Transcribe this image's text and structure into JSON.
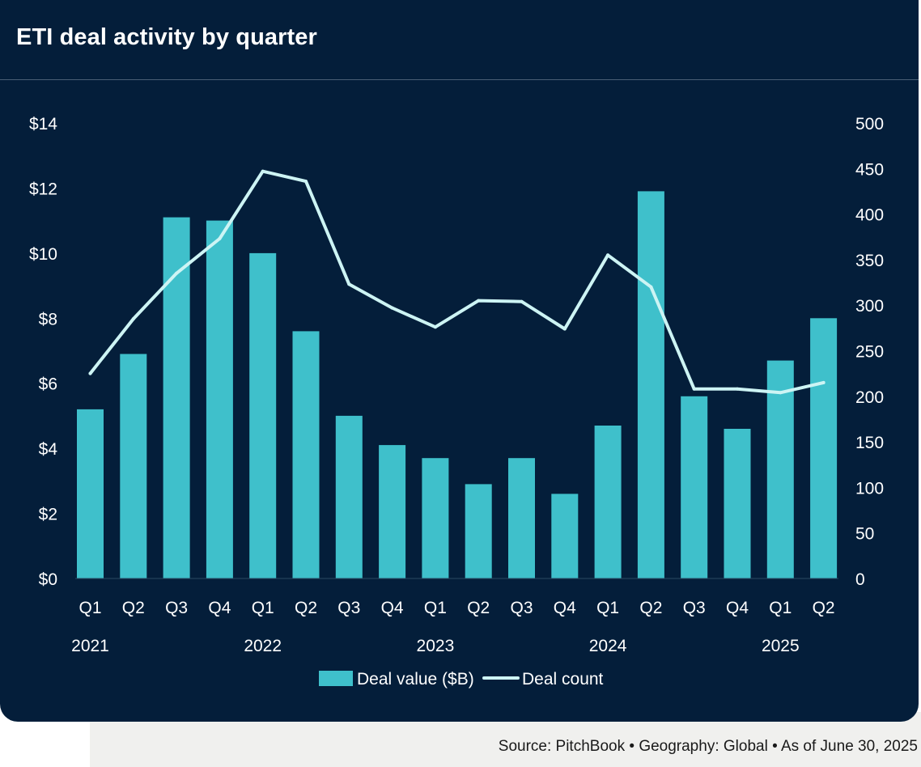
{
  "title": "ETI deal activity by quarter",
  "source": {
    "parts": [
      "Source: PitchBook",
      "Geography: Global",
      "As of June 30, 2025"
    ],
    "separator": "•"
  },
  "colors": {
    "background": "#041e3a",
    "bar": "#3fc0cb",
    "line": "#cdf4f4",
    "text": "#ffffff"
  },
  "chart_data": {
    "type": "bar",
    "title": "ETI deal activity by quarter",
    "categories": [
      "Q1",
      "Q2",
      "Q3",
      "Q4",
      "Q1",
      "Q2",
      "Q3",
      "Q4",
      "Q1",
      "Q2",
      "Q3",
      "Q4",
      "Q1",
      "Q2",
      "Q3",
      "Q4",
      "Q1",
      "Q2"
    ],
    "years": [
      {
        "label": "2021",
        "start_index": 0
      },
      {
        "label": "2022",
        "start_index": 4
      },
      {
        "label": "2023",
        "start_index": 8
      },
      {
        "label": "2024",
        "start_index": 12
      },
      {
        "label": "2025",
        "start_index": 16
      }
    ],
    "series": [
      {
        "name": "Deal value ($B)",
        "type": "bar",
        "axis": "left",
        "values": [
          5.2,
          6.9,
          11.1,
          11.0,
          10.0,
          7.6,
          5.0,
          4.1,
          3.7,
          2.9,
          3.7,
          2.6,
          4.7,
          11.9,
          5.6,
          4.6,
          6.7,
          8.0
        ]
      },
      {
        "name": "Deal count",
        "type": "line",
        "axis": "right",
        "values": [
          225,
          285,
          335,
          373,
          447,
          436,
          323,
          297,
          276,
          305,
          304,
          274,
          355,
          320,
          208,
          208,
          204,
          215
        ]
      }
    ],
    "left_axis": {
      "min": 0,
      "max": 14,
      "ticks": [
        "$0",
        "$2",
        "$4",
        "$6",
        "$8",
        "$10",
        "$12",
        "$14"
      ]
    },
    "right_axis": {
      "min": 0,
      "max": 500,
      "ticks": [
        "0",
        "50",
        "100",
        "150",
        "200",
        "250",
        "300",
        "350",
        "400",
        "450",
        "500"
      ]
    },
    "legend": [
      "Deal value ($B)",
      "Deal count"
    ],
    "legend_position": "bottom-center",
    "grid": false
  }
}
